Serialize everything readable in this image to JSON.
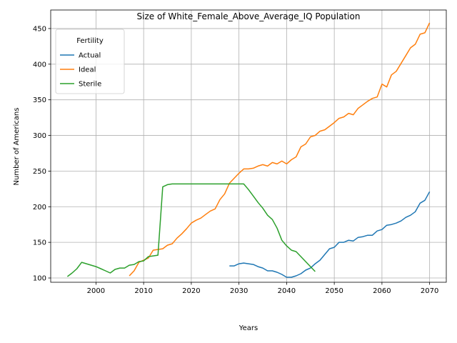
{
  "chart_data": {
    "type": "line",
    "title": "Size of White_Female_Above_Average_IQ Population",
    "xlabel": "Years",
    "ylabel": "Number of Americans",
    "xlim": [
      1990.5,
      2073.5
    ],
    "ylim": [
      94,
      476
    ],
    "xticks": [
      2000,
      2010,
      2020,
      2030,
      2040,
      2050,
      2060,
      2070
    ],
    "yticks": [
      100,
      150,
      200,
      250,
      300,
      350,
      400,
      450
    ],
    "grid": true,
    "legend": {
      "title": "Fertility",
      "position": "top-left"
    },
    "series": [
      {
        "name": "Actual",
        "color": "#1f77b4",
        "x": [
          2028,
          2029,
          2030,
          2031,
          2032,
          2033,
          2034,
          2035,
          2036,
          2037,
          2038,
          2039,
          2040,
          2041,
          2042,
          2043,
          2044,
          2045,
          2046,
          2047,
          2048,
          2049,
          2050,
          2051,
          2052,
          2053,
          2054,
          2055,
          2056,
          2057,
          2058,
          2059,
          2060,
          2061,
          2062,
          2063,
          2064,
          2065,
          2066,
          2067,
          2068,
          2069,
          2070
        ],
        "y": [
          117,
          117,
          120,
          121,
          120,
          119,
          116,
          114,
          110,
          110,
          108,
          105,
          101,
          101,
          103,
          106,
          111,
          114,
          120,
          125,
          133,
          141,
          143,
          150,
          150,
          153,
          152,
          157,
          158,
          160,
          160,
          166,
          168,
          174,
          175,
          177,
          180,
          185,
          188,
          193,
          205,
          209,
          221
        ]
      },
      {
        "name": "Ideal",
        "color": "#ff7f0e",
        "x": [
          2007,
          2008,
          2009,
          2010,
          2011,
          2012,
          2013,
          2014,
          2015,
          2016,
          2017,
          2018,
          2019,
          2020,
          2021,
          2022,
          2023,
          2024,
          2025,
          2026,
          2027,
          2028,
          2029,
          2030,
          2031,
          2032,
          2033,
          2034,
          2035,
          2036,
          2037,
          2038,
          2039,
          2040,
          2041,
          2042,
          2043,
          2044,
          2045,
          2046,
          2047,
          2048,
          2049,
          2050,
          2051,
          2052,
          2053,
          2054,
          2055,
          2056,
          2057,
          2058,
          2059,
          2060,
          2061,
          2062,
          2063,
          2064,
          2065,
          2066,
          2067,
          2068,
          2069,
          2070
        ],
        "y": [
          103,
          110,
          122,
          125,
          128,
          139,
          140,
          141,
          146,
          148,
          156,
          162,
          169,
          177,
          181,
          184,
          189,
          194,
          197,
          210,
          218,
          233,
          240,
          247,
          253,
          253,
          254,
          257,
          259,
          257,
          262,
          260,
          264,
          260,
          266,
          270,
          284,
          288,
          298,
          300,
          306,
          308,
          313,
          318,
          324,
          326,
          331,
          329,
          338,
          343,
          348,
          352,
          354,
          372,
          368,
          385,
          390,
          401,
          412,
          423,
          428,
          442,
          444,
          458
        ]
      },
      {
        "name": "Sterile",
        "color": "#2ca02c",
        "x": [
          1994,
          1995,
          1996,
          1997,
          1998,
          1999,
          2000,
          2001,
          2002,
          2003,
          2004,
          2005,
          2006,
          2007,
          2008,
          2009,
          2010,
          2011,
          2012,
          2013,
          2014,
          2015,
          2016,
          2017,
          2018,
          2019,
          2020,
          2021,
          2022,
          2023,
          2024,
          2025,
          2026,
          2027,
          2028,
          2029,
          2030,
          2031,
          2032,
          2033,
          2034,
          2035,
          2036,
          2037,
          2038,
          2039,
          2040,
          2041,
          2042,
          2043,
          2044,
          2045,
          2046
        ],
        "y": [
          102,
          107,
          113,
          122,
          120,
          118,
          116,
          113,
          110,
          107,
          112,
          114,
          114,
          118,
          119,
          123,
          124,
          130,
          131,
          132,
          228,
          231,
          232,
          232,
          232,
          232,
          232,
          232,
          232,
          232,
          232,
          232,
          232,
          232,
          232,
          232,
          232,
          232,
          224,
          215,
          206,
          198,
          188,
          182,
          170,
          153,
          145,
          139,
          137,
          130,
          123,
          116,
          109
        ]
      }
    ]
  }
}
